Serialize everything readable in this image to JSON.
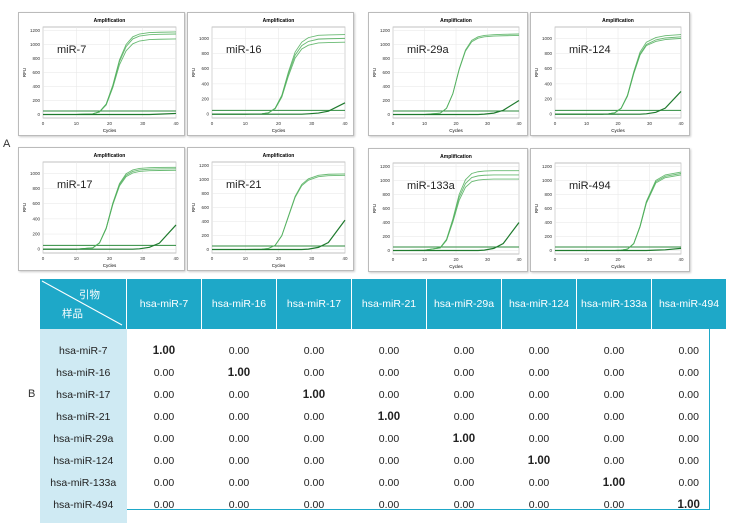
{
  "labels": {
    "a": "A",
    "b": "B"
  },
  "colors": {
    "header": "#1ea8c8",
    "row_header": "#cfeaf3",
    "curve": "#4fae5a",
    "baseline": "#1f7a2e"
  },
  "chart_data": [
    {
      "type": "line",
      "title": "Amplification",
      "annotation": "miR-7",
      "xlabel": "Cycles",
      "ylabel": "RFU",
      "xlim": [
        0,
        40
      ],
      "ylim": [
        -50,
        1250
      ],
      "xticks": [
        0,
        10,
        20,
        30,
        40
      ],
      "yticks": [
        0,
        200,
        400,
        600,
        800,
        1000,
        1200
      ],
      "threshold": 50,
      "x": [
        0,
        5,
        10,
        15,
        17,
        19,
        21,
        23,
        25,
        27,
        29,
        32,
        35,
        40
      ],
      "series": [
        {
          "values": [
            0,
            0,
            0,
            10,
            40,
            150,
            420,
            780,
            1000,
            1110,
            1150,
            1170,
            1175,
            1180
          ]
        },
        {
          "values": [
            0,
            0,
            0,
            10,
            38,
            145,
            405,
            755,
            970,
            1080,
            1120,
            1140,
            1145,
            1150
          ]
        },
        {
          "values": [
            0,
            0,
            0,
            9,
            36,
            136,
            385,
            710,
            910,
            1010,
            1050,
            1070,
            1075,
            1080
          ]
        },
        {
          "values": [
            0,
            0,
            0,
            0,
            0,
            0,
            0,
            0,
            0,
            0,
            0,
            0,
            5,
            15
          ]
        }
      ]
    },
    {
      "type": "line",
      "title": "Amplification",
      "annotation": "miR-16",
      "xlabel": "Cycles",
      "ylabel": "RFU",
      "xlim": [
        0,
        40
      ],
      "ylim": [
        -50,
        1150
      ],
      "xticks": [
        0,
        10,
        20,
        30,
        40
      ],
      "yticks": [
        0,
        200,
        400,
        600,
        800,
        1000
      ],
      "threshold": 50,
      "x": [
        0,
        5,
        10,
        15,
        17,
        19,
        21,
        23,
        25,
        27,
        29,
        32,
        35,
        40
      ],
      "series": [
        {
          "values": [
            0,
            0,
            0,
            5,
            20,
            80,
            250,
            560,
            820,
            950,
            1010,
            1040,
            1045,
            1050
          ]
        },
        {
          "values": [
            0,
            0,
            0,
            5,
            19,
            76,
            238,
            535,
            780,
            905,
            960,
            990,
            995,
            1000
          ]
        },
        {
          "values": [
            0,
            0,
            0,
            4,
            18,
            72,
            226,
            505,
            740,
            860,
            910,
            940,
            945,
            950
          ]
        },
        {
          "values": [
            0,
            0,
            0,
            0,
            0,
            0,
            0,
            0,
            0,
            0,
            5,
            15,
            40,
            150
          ]
        }
      ]
    },
    {
      "type": "line",
      "title": "Amplification",
      "annotation": "miR-29a",
      "xlabel": "Cycles",
      "ylabel": "RFU",
      "xlim": [
        0,
        40
      ],
      "ylim": [
        -50,
        1250
      ],
      "xticks": [
        0,
        10,
        20,
        30,
        40
      ],
      "yticks": [
        0,
        200,
        400,
        600,
        800,
        1000,
        1200
      ],
      "threshold": 50,
      "x": [
        0,
        5,
        10,
        15,
        17,
        19,
        21,
        23,
        25,
        27,
        29,
        32,
        35,
        40
      ],
      "series": [
        {
          "values": [
            0,
            0,
            0,
            20,
            90,
            300,
            650,
            920,
            1060,
            1110,
            1130,
            1140,
            1145,
            1150
          ]
        },
        {
          "values": [
            0,
            0,
            0,
            19,
            88,
            295,
            640,
            905,
            1040,
            1090,
            1110,
            1120,
            1125,
            1130
          ]
        },
        {
          "values": [
            0,
            0,
            0,
            0,
            0,
            0,
            0,
            0,
            0,
            0,
            5,
            20,
            60,
            200
          ]
        }
      ]
    },
    {
      "type": "line",
      "title": "Amplification",
      "annotation": "miR-124",
      "xlabel": "Cycles",
      "ylabel": "RFU",
      "xlim": [
        0,
        40
      ],
      "ylim": [
        -50,
        1150
      ],
      "xticks": [
        0,
        10,
        20,
        30,
        40
      ],
      "yticks": [
        0,
        200,
        400,
        600,
        800,
        1000
      ],
      "threshold": 50,
      "x": [
        0,
        5,
        10,
        15,
        17,
        19,
        21,
        23,
        25,
        27,
        29,
        32,
        35,
        40
      ],
      "series": [
        {
          "values": [
            0,
            0,
            0,
            0,
            5,
            20,
            80,
            250,
            560,
            820,
            950,
            1010,
            1035,
            1050
          ]
        },
        {
          "values": [
            0,
            0,
            0,
            0,
            5,
            19,
            78,
            243,
            545,
            795,
            920,
            980,
            1005,
            1020
          ]
        },
        {
          "values": [
            0,
            0,
            0,
            0,
            5,
            19,
            76,
            238,
            533,
            780,
            905,
            960,
            985,
            1000
          ]
        },
        {
          "values": [
            0,
            0,
            0,
            0,
            0,
            0,
            0,
            0,
            0,
            0,
            5,
            25,
            80,
            300
          ]
        }
      ]
    },
    {
      "type": "line",
      "title": "Amplification",
      "annotation": "miR-17",
      "xlabel": "Cycles",
      "ylabel": "RFU",
      "xlim": [
        0,
        40
      ],
      "ylim": [
        -50,
        1150
      ],
      "xticks": [
        0,
        10,
        20,
        30,
        40
      ],
      "yticks": [
        0,
        200,
        400,
        600,
        800,
        1000
      ],
      "threshold": 50,
      "x": [
        0,
        5,
        10,
        15,
        17,
        19,
        21,
        23,
        25,
        27,
        29,
        32,
        35,
        40
      ],
      "series": [
        {
          "values": [
            0,
            0,
            0,
            20,
            85,
            280,
            610,
            865,
            995,
            1045,
            1065,
            1075,
            1078,
            1080
          ]
        },
        {
          "values": [
            0,
            0,
            0,
            19,
            83,
            275,
            600,
            850,
            975,
            1025,
            1045,
            1055,
            1058,
            1060
          ]
        },
        {
          "values": [
            0,
            0,
            0,
            19,
            82,
            270,
            588,
            833,
            957,
            1005,
            1025,
            1035,
            1038,
            1040
          ]
        },
        {
          "values": [
            0,
            0,
            0,
            0,
            0,
            0,
            0,
            0,
            0,
            0,
            5,
            25,
            80,
            320
          ]
        }
      ]
    },
    {
      "type": "line",
      "title": "Amplification",
      "annotation": "miR-21",
      "xlabel": "Cycles",
      "ylabel": "RFU",
      "xlim": [
        0,
        40
      ],
      "ylim": [
        -50,
        1250
      ],
      "xticks": [
        0,
        10,
        20,
        30,
        40
      ],
      "yticks": [
        0,
        200,
        400,
        600,
        800,
        1000,
        1200
      ],
      "threshold": 50,
      "x": [
        0,
        5,
        10,
        15,
        17,
        19,
        21,
        23,
        25,
        27,
        29,
        32,
        35,
        40
      ],
      "series": [
        {
          "values": [
            0,
            0,
            0,
            5,
            15,
            60,
            200,
            480,
            760,
            930,
            1010,
            1060,
            1075,
            1080
          ]
        },
        {
          "values": [
            0,
            0,
            0,
            5,
            15,
            59,
            196,
            470,
            745,
            912,
            990,
            1040,
            1055,
            1060
          ]
        },
        {
          "values": [
            0,
            0,
            0,
            0,
            0,
            0,
            0,
            0,
            0,
            0,
            5,
            30,
            100,
            420
          ]
        }
      ]
    },
    {
      "type": "line",
      "title": "Amplification",
      "annotation": "miR-133a",
      "xlabel": "Cycles",
      "ylabel": "RFU",
      "xlim": [
        0,
        40
      ],
      "ylim": [
        -50,
        1250
      ],
      "xticks": [
        0,
        10,
        20,
        30,
        40
      ],
      "yticks": [
        0,
        200,
        400,
        600,
        800,
        1000,
        1200
      ],
      "threshold": 50,
      "x": [
        0,
        5,
        10,
        15,
        17,
        19,
        21,
        23,
        25,
        27,
        29,
        32,
        35,
        40
      ],
      "series": [
        {
          "values": [
            0,
            0,
            5,
            40,
            160,
            450,
            800,
            1010,
            1100,
            1125,
            1135,
            1140,
            1140,
            1140
          ]
        },
        {
          "values": [
            0,
            0,
            5,
            38,
            152,
            427,
            758,
            957,
            1042,
            1066,
            1075,
            1080,
            1080,
            1080
          ]
        },
        {
          "values": [
            0,
            0,
            4,
            36,
            144,
            405,
            715,
            903,
            983,
            1006,
            1015,
            1020,
            1020,
            1020
          ]
        },
        {
          "values": [
            0,
            0,
            0,
            0,
            0,
            0,
            0,
            0,
            0,
            0,
            5,
            30,
            100,
            400
          ]
        }
      ]
    },
    {
      "type": "line",
      "title": "",
      "annotation": "miR-494",
      "xlabel": "Cycles",
      "ylabel": "RFU",
      "xlim": [
        0,
        40
      ],
      "ylim": [
        -50,
        1250
      ],
      "xticks": [
        0,
        10,
        20,
        30,
        40
      ],
      "yticks": [
        0,
        200,
        400,
        600,
        800,
        1000,
        1200
      ],
      "threshold": 50,
      "x": [
        0,
        5,
        10,
        15,
        17,
        19,
        21,
        23,
        25,
        27,
        29,
        32,
        35,
        40
      ],
      "series": [
        {
          "values": [
            0,
            0,
            0,
            0,
            0,
            0,
            5,
            20,
            100,
            350,
            700,
            1000,
            1080,
            1120
          ]
        },
        {
          "values": [
            0,
            0,
            0,
            0,
            0,
            0,
            5,
            20,
            98,
            343,
            687,
            982,
            1060,
            1100
          ]
        },
        {
          "values": [
            0,
            0,
            0,
            0,
            0,
            0,
            5,
            19,
            96,
            337,
            675,
            964,
            1041,
            1080
          ]
        },
        {
          "values": [
            0,
            0,
            0,
            0,
            0,
            0,
            0,
            0,
            0,
            0,
            0,
            5,
            10,
            30
          ]
        }
      ]
    }
  ],
  "table": {
    "corner_top": "引物",
    "corner_bottom": "样品",
    "columns": [
      "hsa-miR-7",
      "hsa-miR-16",
      "hsa-miR-17",
      "hsa-miR-21",
      "hsa-miR-29a",
      "hsa-miR-124",
      "hsa-miR-133a",
      "hsa-miR-494"
    ],
    "rows": [
      {
        "label": "hsa-miR-7",
        "values": [
          "1.00",
          "0.00",
          "0.00",
          "0.00",
          "0.00",
          "0.00",
          "0.00",
          "0.00"
        ]
      },
      {
        "label": "hsa-miR-16",
        "values": [
          "0.00",
          "1.00",
          "0.00",
          "0.00",
          "0.00",
          "0.00",
          "0.00",
          "0.00"
        ]
      },
      {
        "label": "hsa-miR-17",
        "values": [
          "0.00",
          "0.00",
          "1.00",
          "0.00",
          "0.00",
          "0.00",
          "0.00",
          "0.00"
        ]
      },
      {
        "label": "hsa-miR-21",
        "values": [
          "0.00",
          "0.00",
          "0.00",
          "1.00",
          "0.00",
          "0.00",
          "0.00",
          "0.00"
        ]
      },
      {
        "label": "hsa-miR-29a",
        "values": [
          "0.00",
          "0.00",
          "0.00",
          "0.00",
          "1.00",
          "0.00",
          "0.00",
          "0.00"
        ]
      },
      {
        "label": "hsa-miR-124",
        "values": [
          "0.00",
          "0.00",
          "0.00",
          "0.00",
          "0.00",
          "1.00",
          "0.00",
          "0.00"
        ]
      },
      {
        "label": "hsa-miR-133a",
        "values": [
          "0.00",
          "0.00",
          "0.00",
          "0.00",
          "0.00",
          "0.00",
          "1.00",
          "0.00"
        ]
      },
      {
        "label": "hsa-miR-494",
        "values": [
          "0.00",
          "0.00",
          "0.00",
          "0.00",
          "0.00",
          "0.00",
          "0.00",
          "1.00"
        ]
      }
    ]
  }
}
